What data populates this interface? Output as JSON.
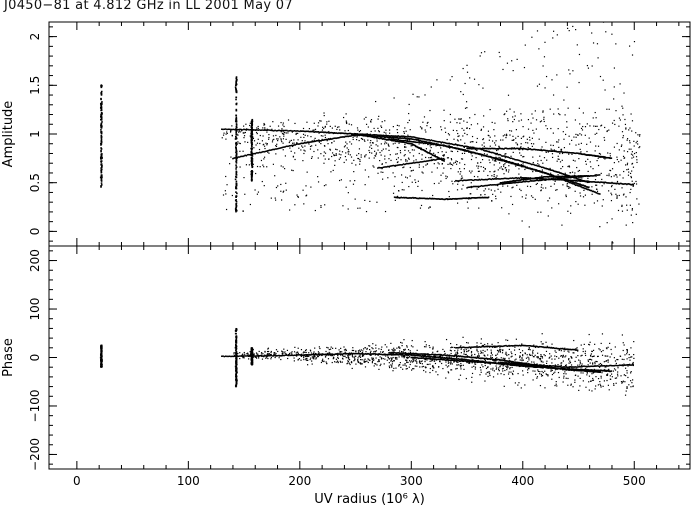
{
  "title": "J0450−81 at 4.812 GHz in LL  2001 May 07",
  "chart_data": [
    {
      "type": "scatter",
      "ylabel": "Amplitude",
      "xlim": [
        -25,
        550
      ],
      "ylim": [
        -0.15,
        2.15
      ],
      "y_ticks": [
        0,
        0.5,
        1,
        1.5,
        2
      ],
      "y_tick_labels": [
        "0",
        "0.5",
        "1",
        "1.5",
        "2"
      ],
      "grid": false,
      "clusters": [
        {
          "x": 22,
          "y_range": [
            0.45,
            1.52
          ]
        },
        {
          "x": 143,
          "y_range": [
            0.2,
            1.6
          ]
        },
        {
          "x": 157,
          "y_range": [
            0.5,
            1.15
          ]
        }
      ],
      "tracks": [
        {
          "x": [
            130,
            200,
            250,
            300,
            330
          ],
          "y": [
            1.05,
            1.03,
            1.0,
            0.9,
            0.72
          ]
        },
        {
          "x": [
            140,
            200,
            250,
            300,
            350,
            420,
            470
          ],
          "y": [
            0.75,
            0.9,
            0.99,
            0.95,
            0.83,
            0.6,
            0.38
          ]
        },
        {
          "x": [
            250,
            300,
            360,
            420,
            460
          ],
          "y": [
            1.0,
            0.97,
            0.85,
            0.65,
            0.5
          ]
        },
        {
          "x": [
            280,
            330,
            380,
            420,
            460
          ],
          "y": [
            0.95,
            0.88,
            0.74,
            0.6,
            0.45
          ]
        },
        {
          "x": [
            350,
            400,
            450,
            480
          ],
          "y": [
            0.85,
            0.85,
            0.8,
            0.75
          ]
        },
        {
          "x": [
            340,
            400,
            450,
            500
          ],
          "y": [
            0.52,
            0.55,
            0.52,
            0.48
          ]
        },
        {
          "x": [
            350,
            410,
            470
          ],
          "y": [
            0.45,
            0.52,
            0.58
          ]
        },
        {
          "x": [
            380,
            420,
            460
          ],
          "y": [
            0.5,
            0.56,
            0.57
          ]
        },
        {
          "x": [
            285,
            330,
            370
          ],
          "y": [
            0.35,
            0.33,
            0.35
          ]
        },
        {
          "x": [
            270,
            330
          ],
          "y": [
            0.65,
            0.75
          ]
        }
      ],
      "scatter_region": {
        "x": [
          130,
          505
        ],
        "y": [
          0.15,
          2.0
        ]
      }
    },
    {
      "type": "scatter",
      "xlabel": "UV radius  (10⁶ λ)",
      "ylabel": "Phase",
      "xlim": [
        -25,
        550
      ],
      "ylim": [
        -230,
        230
      ],
      "x_ticks": [
        0,
        100,
        200,
        300,
        400,
        500
      ],
      "x_tick_labels": [
        "0",
        "100",
        "200",
        "300",
        "400",
        "500"
      ],
      "y_ticks": [
        -200,
        -100,
        0,
        100,
        200
      ],
      "y_tick_labels": [
        "−200",
        "−100",
        "0",
        "100",
        "200"
      ],
      "grid": false,
      "clusters": [
        {
          "x": 22,
          "y_range": [
            -20,
            25
          ]
        },
        {
          "x": 143,
          "y_range": [
            -60,
            60
          ]
        },
        {
          "x": 157,
          "y_range": [
            -15,
            20
          ]
        }
      ],
      "tracks": [
        {
          "x": [
            130,
            200,
            250,
            300,
            350,
            400,
            450,
            480
          ],
          "y": [
            2,
            5,
            8,
            5,
            -5,
            -18,
            -25,
            -28
          ]
        },
        {
          "x": [
            280,
            330,
            380,
            430,
            470
          ],
          "y": [
            10,
            5,
            -5,
            -22,
            -30
          ]
        },
        {
          "x": [
            300,
            350,
            400,
            440,
            470
          ],
          "y": [
            0,
            -8,
            -15,
            -25,
            -30
          ]
        },
        {
          "x": [
            340,
            400,
            450
          ],
          "y": [
            20,
            25,
            15
          ]
        },
        {
          "x": [
            380,
            440,
            500
          ],
          "y": [
            -10,
            -20,
            -15
          ]
        }
      ],
      "scatter_region": {
        "x": [
          140,
          500
        ],
        "y": [
          -120,
          100
        ]
      }
    }
  ]
}
